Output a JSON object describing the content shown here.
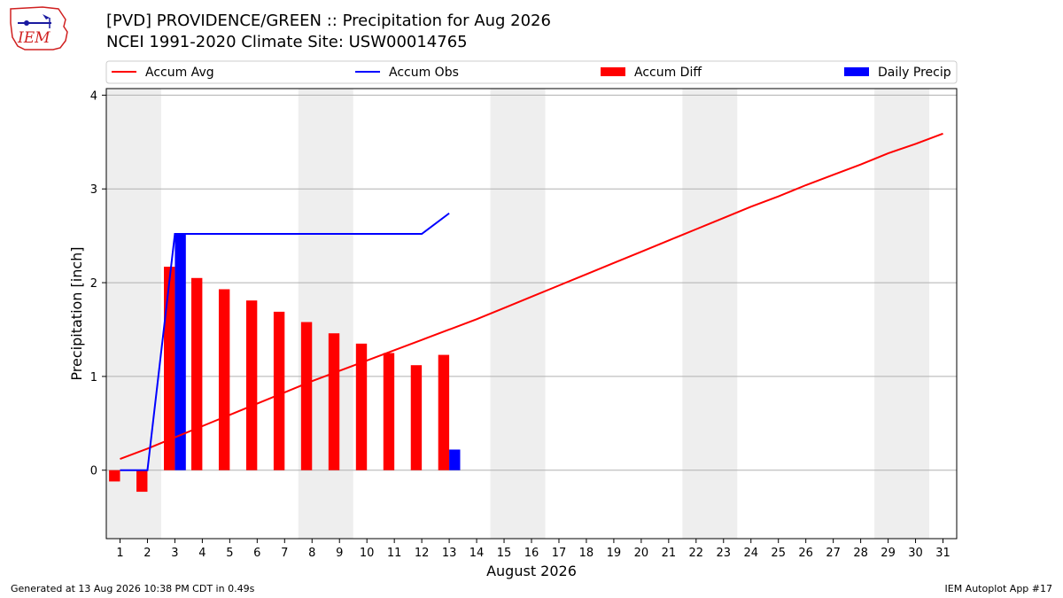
{
  "header": {
    "title": "[PVD] PROVIDENCE/GREEN :: Precipitation for Aug 2026",
    "subtitle": "NCEI 1991-2020 Climate Site: USW00014765",
    "logo_text": "IEM"
  },
  "footer": {
    "left": "Generated at 13 Aug 2026 10:38 PM CDT in 0.49s",
    "right": "IEM Autoplot App #17"
  },
  "chart_data": {
    "type": "bar",
    "title": "[PVD] PROVIDENCE/GREEN :: Precipitation for Aug 2026",
    "subtitle": "NCEI 1991-2020 Climate Site: USW00014765",
    "xlabel": "August 2026",
    "ylabel": "Precipitation [inch]",
    "xlim": [
      0.5,
      31.5
    ],
    "ylim": [
      -0.73,
      4.07
    ],
    "x_ticks": [
      1,
      2,
      3,
      4,
      5,
      6,
      7,
      8,
      9,
      10,
      11,
      12,
      13,
      14,
      15,
      16,
      17,
      18,
      19,
      20,
      21,
      22,
      23,
      24,
      25,
      26,
      27,
      28,
      29,
      30,
      31
    ],
    "y_ticks": [
      0,
      1,
      2,
      3,
      4
    ],
    "grid": "horizontal",
    "legend_position": "top",
    "weekend_shading": [
      [
        0.5,
        2.5
      ],
      [
        7.5,
        9.5
      ],
      [
        14.5,
        16.5
      ],
      [
        21.5,
        23.5
      ],
      [
        28.5,
        30.5
      ]
    ],
    "series": [
      {
        "name": "Accum Avg",
        "type": "line",
        "color": "#ff0000",
        "x": [
          1,
          2,
          3,
          4,
          5,
          6,
          7,
          8,
          9,
          10,
          11,
          12,
          13,
          14,
          15,
          16,
          17,
          18,
          19,
          20,
          21,
          22,
          23,
          24,
          25,
          26,
          27,
          28,
          29,
          30,
          31
        ],
        "values": [
          0.12,
          0.23,
          0.35,
          0.47,
          0.59,
          0.71,
          0.83,
          0.95,
          1.06,
          1.17,
          1.28,
          1.39,
          1.5,
          1.61,
          1.73,
          1.85,
          1.97,
          2.09,
          2.21,
          2.33,
          2.45,
          2.57,
          2.69,
          2.81,
          2.92,
          3.04,
          3.15,
          3.26,
          3.38,
          3.48,
          3.59
        ]
      },
      {
        "name": "Accum Obs",
        "type": "line",
        "color": "#0000ff",
        "x": [
          1,
          2,
          3,
          4,
          5,
          6,
          7,
          8,
          9,
          10,
          11,
          12,
          13
        ],
        "values": [
          0.0,
          0.0,
          2.52,
          2.52,
          2.52,
          2.52,
          2.52,
          2.52,
          2.52,
          2.52,
          2.52,
          2.52,
          2.74
        ]
      },
      {
        "name": "Accum Diff",
        "type": "bar",
        "color": "#ff0000",
        "x": [
          1,
          2,
          3,
          4,
          5,
          6,
          7,
          8,
          9,
          10,
          11,
          12,
          13
        ],
        "values": [
          -0.12,
          -0.23,
          2.17,
          2.05,
          1.93,
          1.81,
          1.69,
          1.58,
          1.46,
          1.35,
          1.25,
          1.12,
          1.23
        ]
      },
      {
        "name": "Daily Precip",
        "type": "bar",
        "color": "#0000ff",
        "x": [
          1,
          2,
          3,
          4,
          5,
          6,
          7,
          8,
          9,
          10,
          11,
          12,
          13
        ],
        "values": [
          0,
          0,
          2.52,
          0,
          0,
          0,
          0,
          0,
          0,
          0,
          0,
          0,
          0.22
        ]
      }
    ]
  }
}
